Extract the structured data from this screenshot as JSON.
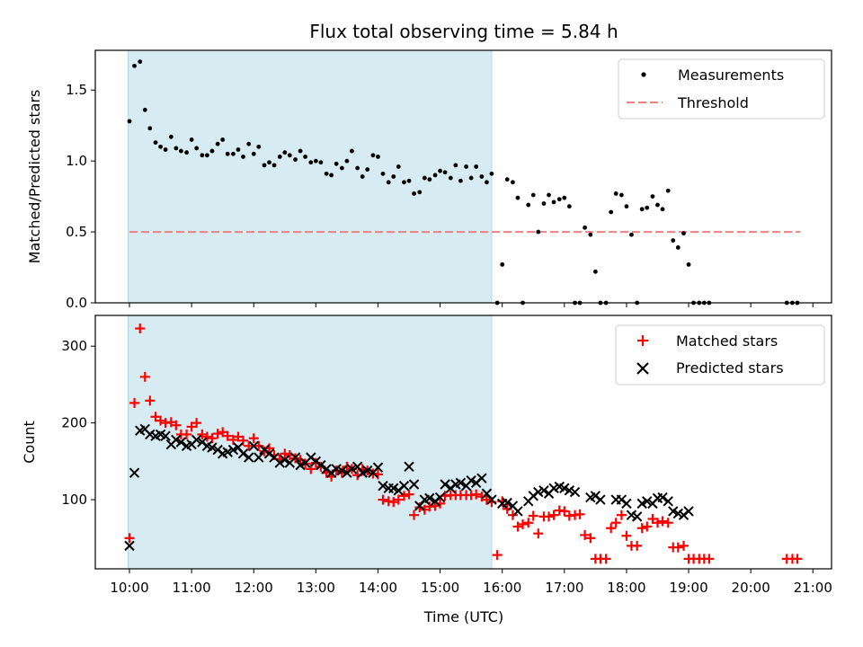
{
  "chart_data": {
    "title": "Flux total observing time = 5.84 h",
    "xlabel": "Time (UTC)",
    "x_unit": "hours UTC",
    "xlim": [
      9.45,
      21.3
    ],
    "x_ticks": [
      10,
      11,
      12,
      13,
      14,
      15,
      16,
      17,
      18,
      19,
      20,
      21
    ],
    "x_tick_labels": [
      "10:00",
      "11:00",
      "12:00",
      "13:00",
      "14:00",
      "15:00",
      "16:00",
      "17:00",
      "18:00",
      "19:00",
      "20:00",
      "21:00"
    ],
    "observing_window": {
      "start": 9.98,
      "end": 15.83
    },
    "panels": [
      {
        "type": "scatter",
        "ylabel": "Matched/Predicted stars",
        "ylim": [
          0,
          1.78
        ],
        "y_ticks": [
          0.0,
          0.5,
          1.0,
          1.5
        ],
        "y_tick_labels": [
          "0.0",
          "0.5",
          "1.0",
          "1.5"
        ],
        "legend": [
          "Measurements",
          "Threshold"
        ],
        "threshold": {
          "value": 0.5,
          "x_start": 10.0,
          "x_end": 20.8,
          "color": "#f08080"
        },
        "series": [
          {
            "name": "Measurements",
            "marker": "dot",
            "color": "#000000",
            "x": [
              10.0,
              10.08,
              10.17,
              10.25,
              10.33,
              10.42,
              10.5,
              10.58,
              10.67,
              10.75,
              10.83,
              10.92,
              11.0,
              11.08,
              11.17,
              11.25,
              11.33,
              11.42,
              11.5,
              11.58,
              11.67,
              11.75,
              11.83,
              11.92,
              12.0,
              12.08,
              12.17,
              12.25,
              12.33,
              12.42,
              12.5,
              12.58,
              12.67,
              12.75,
              12.83,
              12.92,
              13.0,
              13.08,
              13.17,
              13.25,
              13.33,
              13.42,
              13.5,
              13.58,
              13.67,
              13.75,
              13.83,
              13.92,
              14.0,
              14.08,
              14.17,
              14.25,
              14.33,
              14.42,
              14.5,
              14.58,
              14.67,
              14.75,
              14.83,
              14.92,
              15.0,
              15.08,
              15.17,
              15.25,
              15.33,
              15.42,
              15.5,
              15.58,
              15.67,
              15.75,
              15.83,
              15.92,
              16.0,
              16.08,
              16.17,
              16.25,
              16.33,
              16.42,
              16.5,
              16.58,
              16.67,
              16.75,
              16.83,
              16.92,
              17.0,
              17.08,
              17.17,
              17.25,
              17.33,
              17.42,
              17.5,
              17.58,
              17.67,
              17.75,
              17.83,
              17.92,
              18.0,
              18.08,
              18.17,
              18.25,
              18.33,
              18.42,
              18.5,
              18.58,
              18.67,
              18.75,
              18.83,
              18.92,
              19.0,
              19.08,
              19.17,
              19.25,
              19.33,
              20.58,
              20.67,
              20.75
            ],
            "y": [
              1.28,
              1.67,
              1.7,
              1.36,
              1.23,
              1.13,
              1.1,
              1.08,
              1.17,
              1.09,
              1.07,
              1.06,
              1.15,
              1.09,
              1.04,
              1.04,
              1.07,
              1.12,
              1.15,
              1.05,
              1.05,
              1.08,
              1.03,
              1.12,
              1.05,
              1.1,
              0.97,
              0.99,
              0.97,
              1.03,
              1.06,
              1.04,
              1.01,
              1.07,
              1.03,
              0.99,
              1.0,
              0.99,
              0.91,
              0.9,
              0.98,
              0.95,
              1.0,
              1.07,
              0.95,
              0.89,
              0.94,
              1.04,
              1.03,
              0.91,
              0.85,
              0.89,
              0.96,
              0.85,
              0.86,
              0.77,
              0.78,
              0.88,
              0.87,
              0.9,
              0.93,
              0.92,
              0.88,
              0.97,
              0.86,
              0.96,
              0.88,
              0.96,
              0.89,
              0.85,
              0.91,
              0.0,
              0.27,
              0.87,
              0.85,
              0.74,
              0.0,
              0.69,
              0.76,
              0.5,
              0.7,
              0.76,
              0.71,
              0.73,
              0.74,
              0.68,
              0.0,
              0.0,
              0.53,
              0.48,
              0.22,
              0.0,
              0.0,
              0.64,
              0.77,
              0.76,
              0.68,
              0.48,
              0.0,
              0.66,
              0.67,
              0.75,
              0.69,
              0.66,
              0.79,
              0.44,
              0.39,
              0.49,
              0.27,
              0.0,
              0.0,
              0.0,
              0.0,
              0.0,
              0.0,
              0.0
            ]
          }
        ]
      },
      {
        "type": "scatter",
        "ylabel": "Count",
        "ylim": [
          10,
          340
        ],
        "y_ticks": [
          100,
          200,
          300
        ],
        "y_tick_labels": [
          "100",
          "200",
          "300"
        ],
        "legend": [
          "Matched stars",
          "Predicted stars"
        ],
        "series": [
          {
            "name": "Matched stars",
            "marker": "plus",
            "color": "#ff0000",
            "x": [
              10.0,
              10.08,
              10.17,
              10.25,
              10.33,
              10.42,
              10.5,
              10.58,
              10.67,
              10.75,
              10.83,
              10.92,
              11.0,
              11.08,
              11.17,
              11.25,
              11.33,
              11.42,
              11.5,
              11.58,
              11.67,
              11.75,
              11.83,
              11.92,
              12.0,
              12.08,
              12.17,
              12.25,
              12.33,
              12.42,
              12.5,
              12.58,
              12.67,
              12.75,
              12.83,
              12.92,
              13.0,
              13.08,
              13.17,
              13.25,
              13.33,
              13.42,
              13.5,
              13.58,
              13.67,
              13.75,
              13.83,
              13.92,
              14.0,
              14.08,
              14.17,
              14.25,
              14.33,
              14.42,
              14.5,
              14.58,
              14.67,
              14.75,
              14.83,
              14.92,
              15.0,
              15.08,
              15.17,
              15.25,
              15.33,
              15.42,
              15.5,
              15.58,
              15.67,
              15.75,
              15.83,
              15.92,
              16.0,
              16.08,
              16.17,
              16.25,
              16.33,
              16.42,
              16.5,
              16.58,
              16.67,
              16.75,
              16.83,
              16.92,
              17.0,
              17.08,
              17.17,
              17.25,
              17.33,
              17.42,
              17.5,
              17.58,
              17.67,
              17.75,
              17.83,
              17.92,
              18.0,
              18.08,
              18.17,
              18.25,
              18.33,
              18.42,
              18.5,
              18.58,
              18.67,
              18.75,
              18.83,
              18.92,
              19.0,
              19.08,
              19.17,
              19.25,
              19.33,
              20.58,
              20.67,
              20.75
            ],
            "y": [
              50,
              226,
              323,
              260,
              229,
              208,
              203,
              200,
              201,
              197,
              185,
              185,
              195,
              200,
              185,
              182,
              180,
              186,
              188,
              183,
              178,
              182,
              177,
              170,
              180,
              170,
              163,
              167,
              158,
              153,
              160,
              158,
              154,
              152,
              147,
              140,
              148,
              143,
              135,
              130,
              138,
              135,
              143,
              140,
              132,
              140,
              138,
              134,
              133,
              100,
              98,
              97,
              100,
              105,
              107,
              80,
              90,
              87,
              91,
              92,
              95,
              105,
              106,
              106,
              106,
              106,
              106,
              107,
              104,
              100,
              97,
              28,
              98,
              88,
              80,
              65,
              68,
              70,
              79,
              56,
              78,
              78,
              80,
              86,
              85,
              79,
              80,
              81,
              54,
              50,
              23,
              23,
              23,
              63,
              70,
              80,
              53,
              40,
              40,
              63,
              65,
              75,
              70,
              72,
              70,
              38,
              38,
              40,
              23,
              23,
              23,
              23,
              23,
              23,
              23,
              23
            ]
          },
          {
            "name": "Predicted stars",
            "marker": "cross",
            "color": "#000000",
            "x": [
              10.0,
              10.08,
              10.17,
              10.25,
              10.33,
              10.42,
              10.5,
              10.58,
              10.67,
              10.75,
              10.83,
              10.92,
              11.0,
              11.08,
              11.17,
              11.25,
              11.33,
              11.42,
              11.5,
              11.58,
              11.67,
              11.75,
              11.83,
              11.92,
              12.0,
              12.08,
              12.17,
              12.25,
              12.33,
              12.42,
              12.5,
              12.58,
              12.67,
              12.75,
              12.83,
              12.92,
              13.0,
              13.08,
              13.17,
              13.25,
              13.33,
              13.42,
              13.5,
              13.58,
              13.67,
              13.75,
              13.83,
              13.92,
              14.0,
              14.08,
              14.17,
              14.25,
              14.33,
              14.42,
              14.5,
              14.58,
              14.67,
              14.75,
              14.83,
              14.92,
              15.0,
              15.08,
              15.17,
              15.25,
              15.33,
              15.42,
              15.5,
              15.58,
              15.67,
              15.75,
              15.83,
              16.0,
              16.08,
              16.17,
              16.25,
              16.42,
              16.5,
              16.58,
              16.67,
              16.75,
              16.83,
              16.92,
              17.0,
              17.08,
              17.17,
              17.42,
              17.5,
              17.58,
              17.83,
              17.92,
              18.0,
              18.08,
              18.17,
              18.25,
              18.33,
              18.42,
              18.5,
              18.58,
              18.67,
              18.75,
              18.83,
              18.92,
              19.0
            ],
            "y": [
              40,
              135,
              190,
              192,
              185,
              183,
              185,
              183,
              172,
              178,
              175,
              170,
              172,
              178,
              175,
              170,
              168,
              165,
              160,
              162,
              165,
              168,
              160,
              155,
              170,
              155,
              165,
              160,
              155,
              148,
              152,
              148,
              155,
              145,
              148,
              155,
              150,
              145,
              140,
              135,
              140,
              138,
              135,
              140,
              143,
              135,
              138,
              135,
              142,
              118,
              115,
              115,
              112,
              118,
              143,
              120,
              92,
              100,
              102,
              98,
              103,
              120,
              115,
              120,
              122,
              118,
              125,
              122,
              128,
              108,
              100,
              95,
              96,
              92,
              85,
              98,
              105,
              110,
              112,
              108,
              115,
              117,
              115,
              112,
              110,
              103,
              105,
              100,
              100,
              100,
              95,
              80,
              78,
              95,
              98,
              95,
              102,
              103,
              98,
              85,
              82,
              80,
              85
            ]
          }
        ]
      }
    ]
  }
}
